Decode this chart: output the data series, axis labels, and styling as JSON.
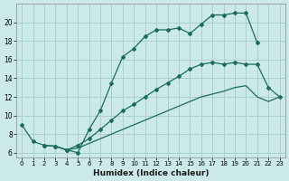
{
  "xlabel": "Humidex (Indice chaleur)",
  "bg_color": "#cce9e9",
  "grid_color": "#aacfcf",
  "line_color": "#1a6b60",
  "xlim": [
    -0.5,
    23.5
  ],
  "ylim": [
    5.5,
    22.0
  ],
  "xticks": [
    0,
    1,
    2,
    3,
    4,
    5,
    6,
    7,
    8,
    9,
    10,
    11,
    12,
    13,
    14,
    15,
    16,
    17,
    18,
    19,
    20,
    21,
    22,
    23
  ],
  "yticks": [
    6,
    8,
    10,
    12,
    14,
    16,
    18,
    20
  ],
  "line1_x": [
    0,
    1,
    2,
    3,
    4,
    5,
    6,
    7,
    8,
    9,
    10,
    11,
    12,
    13,
    14,
    15,
    16,
    17,
    18,
    19,
    20,
    21
  ],
  "line1_y": [
    9.0,
    7.2,
    6.8,
    6.7,
    6.3,
    6.0,
    8.5,
    10.5,
    13.5,
    16.3,
    17.2,
    18.5,
    19.2,
    19.2,
    19.4,
    18.8,
    19.8,
    20.8,
    20.8,
    21.0,
    21.0,
    17.8
  ],
  "line2_x": [
    2,
    3,
    4,
    5,
    6,
    7,
    8,
    9,
    10,
    11,
    12,
    13,
    14,
    15,
    16,
    17,
    18,
    19,
    20,
    21,
    22,
    23
  ],
  "line2_y": [
    6.8,
    6.7,
    6.3,
    6.8,
    7.5,
    8.5,
    9.5,
    10.5,
    11.2,
    12.0,
    12.8,
    13.5,
    14.2,
    15.0,
    15.5,
    15.7,
    15.5,
    15.7,
    15.5,
    15.5,
    13.0,
    12.0
  ],
  "line3_x": [
    3,
    4,
    5,
    6,
    7,
    8,
    9,
    10,
    11,
    12,
    13,
    14,
    15,
    16,
    17,
    18,
    19,
    20,
    21,
    22,
    23
  ],
  "line3_y": [
    6.7,
    6.3,
    6.5,
    7.0,
    7.5,
    8.0,
    8.5,
    9.0,
    9.5,
    10.0,
    10.5,
    11.0,
    11.5,
    12.0,
    12.3,
    12.6,
    13.0,
    13.2,
    12.0,
    11.5,
    12.0
  ],
  "marker_symbol": "D",
  "marker_size": 2.0,
  "line_width": 0.9
}
